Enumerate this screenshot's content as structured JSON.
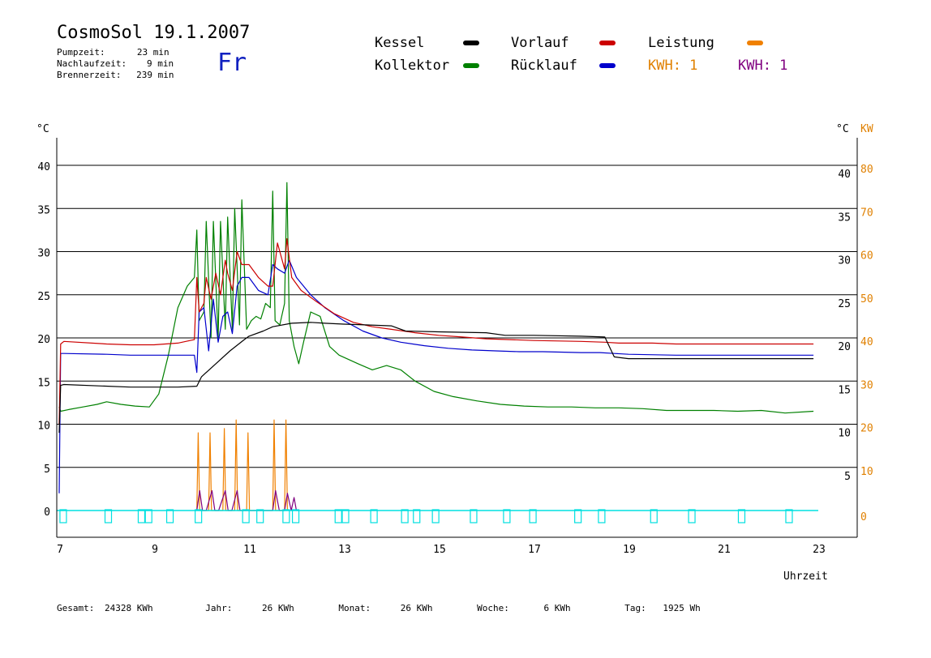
{
  "header": {
    "title": "CosmoSol 19.1.2007",
    "weekday": "Fr",
    "pump_label": "Pumpzeit:",
    "pump_value": "23 min",
    "nachlauf_label": "Nachlaufzeit:",
    "nachlauf_value": "9 min",
    "brenner_label": "Brennerzeit:",
    "brenner_value": "239 min"
  },
  "legend": {
    "kessel": "Kessel",
    "kollektor": "Kollektor",
    "vorlauf": "Vorlauf",
    "ruecklauf": "Rücklauf",
    "leistung": "Leistung",
    "kwh1": "KWH: 1",
    "kwh2": "KWH: 1"
  },
  "colors": {
    "kessel": "#000000",
    "kollektor": "#008000",
    "vorlauf": "#cc0000",
    "ruecklauf": "#0000cc",
    "leistung": "#f08000",
    "kwh2": "#800080",
    "pump": "#00e0e0",
    "kw_axis": "#e08000"
  },
  "footer": {
    "gesamt_label": "Gesamt:",
    "gesamt_value": "24328 KWh",
    "jahr_label": "Jahr:",
    "jahr_value": "26 KWh",
    "monat_label": "Monat:",
    "monat_value": "26 KWh",
    "woche_label": "Woche:",
    "woche_value": "6 KWh",
    "tag_label": "Tag:",
    "tag_value": "1925 Wh"
  },
  "chart_data": {
    "type": "line",
    "xlabel": "Uhrzeit",
    "ylabel_left": "°C",
    "ylabel_right": "°C",
    "ylabel_right2": "KW",
    "xlim": [
      7,
      23
    ],
    "ylim": [
      0,
      45
    ],
    "x_ticks": [
      7,
      9,
      11,
      13,
      15,
      17,
      19,
      21,
      23
    ],
    "y_ticks_left": [
      0,
      5,
      10,
      15,
      20,
      25,
      30,
      35,
      40
    ],
    "y_ticks_right": [
      5,
      10,
      15,
      20,
      25,
      30,
      35,
      40
    ],
    "y_ticks_kw": [
      0,
      10,
      20,
      30,
      40,
      50,
      60,
      70,
      80
    ],
    "grid": "horizontal",
    "series": [
      {
        "name": "Kessel",
        "color": "#000000",
        "x": [
          7.0,
          7.03,
          7.1,
          8.5,
          9.0,
          9.5,
          9.9,
          10.0,
          10.3,
          10.6,
          10.9,
          11.0,
          11.3,
          11.5,
          11.9,
          12.3,
          12.6,
          13.0,
          13.5,
          14.0,
          14.3,
          15.0,
          16.0,
          16.4,
          17.0,
          18.0,
          18.5,
          18.7,
          19.0,
          20.0,
          21.0,
          22.0,
          22.9
        ],
        "y": [
          9.0,
          14.5,
          14.6,
          14.3,
          14.3,
          14.3,
          14.4,
          15.5,
          17.0,
          18.5,
          19.8,
          20.2,
          20.8,
          21.3,
          21.7,
          21.8,
          21.7,
          21.6,
          21.5,
          21.4,
          20.8,
          20.7,
          20.6,
          20.3,
          20.3,
          20.2,
          20.1,
          17.8,
          17.6,
          17.6,
          17.6,
          17.6,
          17.6
        ]
      },
      {
        "name": "Kollektor",
        "color": "#008000",
        "x": [
          7.0,
          7.03,
          7.2,
          7.5,
          7.8,
          8.0,
          8.3,
          8.6,
          8.9,
          9.1,
          9.3,
          9.5,
          9.7,
          9.85,
          9.9,
          9.95,
          10.05,
          10.1,
          10.2,
          10.25,
          10.35,
          10.4,
          10.5,
          10.55,
          10.65,
          10.7,
          10.8,
          10.85,
          10.95,
          11.05,
          11.15,
          11.25,
          11.35,
          11.45,
          11.5,
          11.55,
          11.65,
          11.75,
          11.8,
          11.85,
          11.95,
          12.05,
          12.15,
          12.3,
          12.5,
          12.7,
          12.9,
          13.1,
          13.3,
          13.6,
          13.9,
          14.2,
          14.5,
          14.9,
          15.3,
          15.8,
          16.3,
          16.8,
          17.3,
          17.8,
          18.3,
          18.8,
          19.3,
          19.8,
          20.3,
          20.8,
          21.3,
          21.8,
          22.3,
          22.9
        ],
        "y": [
          12.0,
          11.5,
          11.7,
          12.0,
          12.3,
          12.6,
          12.3,
          12.1,
          12.0,
          13.5,
          18.0,
          23.5,
          26.0,
          27.0,
          32.5,
          22.0,
          23.0,
          33.5,
          20.0,
          33.5,
          20.0,
          33.5,
          21.0,
          34.0,
          21.0,
          35.0,
          21.5,
          36.0,
          21.0,
          22.0,
          22.5,
          22.2,
          24.0,
          23.5,
          37.0,
          22.0,
          21.5,
          24.0,
          38.0,
          22.0,
          19.0,
          17.0,
          19.5,
          23.0,
          22.5,
          19.0,
          18.0,
          17.5,
          17.0,
          16.3,
          16.8,
          16.3,
          15.0,
          13.8,
          13.2,
          12.7,
          12.3,
          12.1,
          12.0,
          12.0,
          11.9,
          11.9,
          11.8,
          11.6,
          11.6,
          11.6,
          11.5,
          11.6,
          11.3,
          11.5
        ]
      },
      {
        "name": "Vorlauf",
        "color": "#cc0000",
        "x": [
          7.0,
          7.03,
          7.1,
          8.0,
          8.5,
          9.0,
          9.5,
          9.85,
          9.9,
          9.95,
          10.05,
          10.1,
          10.2,
          10.3,
          10.4,
          10.5,
          10.55,
          10.65,
          10.75,
          10.85,
          11.0,
          11.2,
          11.4,
          11.5,
          11.6,
          11.75,
          11.8,
          11.9,
          12.1,
          12.4,
          12.8,
          13.2,
          13.6,
          14.0,
          14.5,
          15.0,
          15.5,
          16.0,
          16.5,
          17.0,
          18.0,
          18.5,
          18.8,
          19.5,
          20.0,
          21.0,
          22.0,
          22.9
        ],
        "y": [
          10.0,
          19.3,
          19.6,
          19.3,
          19.2,
          19.2,
          19.4,
          19.8,
          27.0,
          23.0,
          24.0,
          27.0,
          24.5,
          27.5,
          25.0,
          29.0,
          27.5,
          25.5,
          30.0,
          28.5,
          28.5,
          27.0,
          26.0,
          26.0,
          31.0,
          28.0,
          31.5,
          27.0,
          25.5,
          24.3,
          22.8,
          21.8,
          21.3,
          21.0,
          20.6,
          20.3,
          20.1,
          19.9,
          19.8,
          19.7,
          19.6,
          19.5,
          19.4,
          19.4,
          19.3,
          19.3,
          19.3,
          19.3
        ]
      },
      {
        "name": "Rücklauf",
        "color": "#0000cc",
        "x": [
          7.0,
          7.03,
          7.1,
          8.0,
          8.5,
          9.0,
          9.5,
          9.85,
          9.9,
          9.95,
          10.05,
          10.15,
          10.25,
          10.35,
          10.45,
          10.55,
          10.65,
          10.75,
          10.85,
          11.0,
          11.2,
          11.4,
          11.5,
          11.6,
          11.75,
          11.85,
          12.0,
          12.3,
          12.6,
          13.0,
          13.4,
          13.8,
          14.2,
          14.7,
          15.2,
          15.7,
          16.2,
          16.7,
          17.2,
          18.0,
          18.4,
          18.7,
          19.0,
          20.0,
          21.0,
          22.0,
          22.9
        ],
        "y": [
          2.0,
          18.2,
          18.2,
          18.1,
          18.0,
          18.0,
          18.0,
          18.0,
          16.0,
          23.0,
          23.5,
          18.5,
          24.5,
          19.5,
          22.5,
          23.0,
          20.5,
          26.0,
          27.0,
          27.0,
          25.5,
          25.0,
          28.5,
          28.0,
          27.5,
          29.0,
          27.0,
          25.0,
          23.5,
          22.0,
          20.8,
          20.0,
          19.5,
          19.1,
          18.8,
          18.6,
          18.5,
          18.4,
          18.4,
          18.3,
          18.3,
          18.2,
          18.1,
          18.0,
          18.0,
          18.0,
          18.0
        ]
      },
      {
        "name": "Leistung",
        "color": "#f08000",
        "x": [
          9.9,
          9.93,
          9.96,
          10.15,
          10.18,
          10.21,
          10.45,
          10.48,
          10.51,
          10.7,
          10.73,
          10.76,
          10.95,
          10.98,
          11.01,
          11.5,
          11.53,
          11.56,
          11.75,
          11.78,
          11.81
        ],
        "y": [
          0,
          9.0,
          0,
          0,
          9.0,
          0,
          0,
          9.5,
          0,
          0,
          10.5,
          0,
          0,
          9.0,
          0,
          0,
          10.5,
          0,
          0,
          10.5,
          0
        ]
      },
      {
        "name": "KWH",
        "color": "#800080",
        "x": [
          9.9,
          9.96,
          10.02,
          10.1,
          10.22,
          10.28,
          10.36,
          10.5,
          10.56,
          10.64,
          10.75,
          10.81,
          10.89,
          11.5,
          11.56,
          11.64,
          11.75,
          11.81,
          11.89,
          11.95,
          12.0,
          12.05
        ],
        "y": [
          0,
          2.3,
          0,
          0,
          2.3,
          0,
          0,
          2.3,
          0,
          0,
          2.3,
          0,
          0,
          0,
          2.3,
          0,
          0,
          2.0,
          0,
          1.5,
          0,
          0
        ]
      }
    ]
  }
}
